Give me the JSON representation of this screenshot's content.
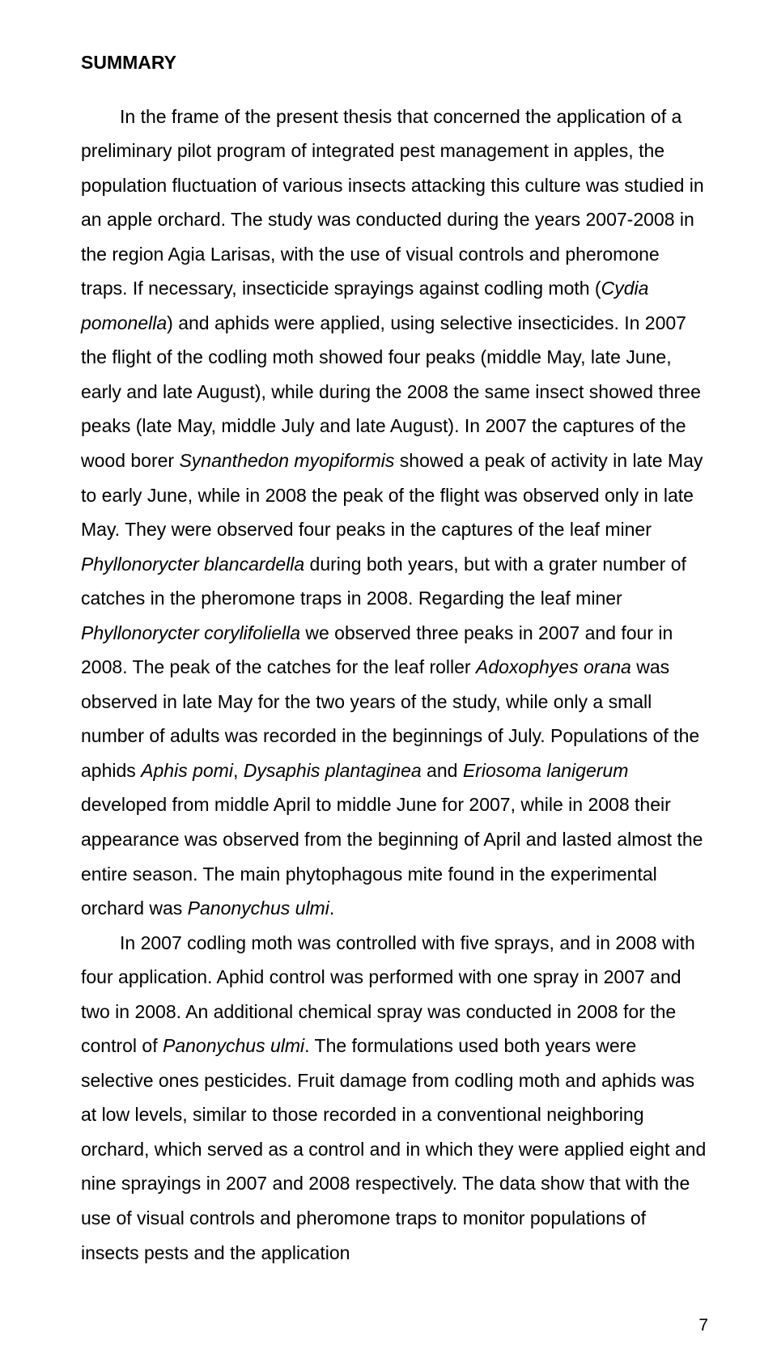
{
  "heading": "SUMMARY",
  "page_number": "7",
  "text": {
    "p1_a": "In the frame of the present thesis that concerned the application of a preliminary pilot program of integrated pest management in apples, the population fluctuation of various insects attacking this culture was studied in an apple orchard. The study was conducted during the years 2007-2008 in the region Agia Larisas, with the use of visual controls and pheromone traps. If necessary, insecticide sprayings against codling moth (",
    "sp1": "Cydia pomonella",
    "p1_b": ") and aphids were applied, using selective insecticides. In 2007 the flight of the codling moth showed four peaks (middle May, late June, early and late August), while during the 2008 the same insect showed three peaks (late May, middle July and late August). In 2007 the captures of the wood borer ",
    "sp2": "Synanthedon myopiformis",
    "p1_c": " showed a peak of activity in late May to early June, while in 2008 the peak of the flight was observed only in late May. They were observed four peaks in the captures of the leaf miner ",
    "sp3": "Phyllonorycter blancardella",
    "p1_d": " during both years, but with a grater number of catches in the pheromone traps in 2008. Regarding the leaf miner ",
    "sp4": "Phyllonorycter corylifoliella",
    "p1_e": " we observed three peaks in 2007 and four in 2008. The peak of the catches for the leaf roller ",
    "sp5": "Adoxophyes orana",
    "p1_f": " was observed in late May for the two years of the study, while only a small number of adults was recorded in the beginnings of July. Populations of the aphids ",
    "sp6": "Aphis pomi",
    "p1_g": ", ",
    "sp7": "Dysaphis plantaginea",
    "p1_h": " and ",
    "sp8": "Eriosoma lanigerum",
    "p1_i": " developed from middle April to middle June for 2007, while in 2008 their appearance was observed from the beginning of April and lasted almost the entire season. The main phytophagous mite found in the experimental orchard was ",
    "sp9": "Panonychus ulmi",
    "p1_j": ".",
    "p2_a": "In 2007 codling moth was controlled with five sprays, and in 2008 with four application. Aphid control was performed with one spray in 2007 and two in 2008. An additional chemical spray was conducted in 2008 for the control of ",
    "sp10": "Panonychus ulmi",
    "p2_b": ". The formulations used both years were selective ones pesticides. Fruit damage from codling moth and aphids was at low levels, similar to those recorded in a conventional neighboring orchard, which served as a control and in which they were applied eight and nine sprayings in 2007 and 2008 respectively. The data show that with the use of visual controls and pheromone traps to monitor populations of insects pests and the application"
  }
}
